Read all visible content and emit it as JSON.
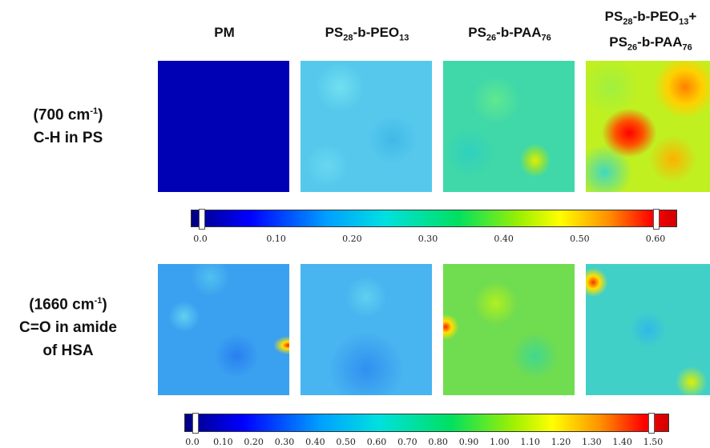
{
  "columns": [
    {
      "lines": [
        [
          "PM"
        ]
      ]
    },
    {
      "lines": [
        [
          "PS",
          "28",
          "-b-PEO",
          "13"
        ]
      ]
    },
    {
      "lines": [
        [
          "PS",
          "26",
          "-b-PAA",
          "76"
        ]
      ]
    },
    {
      "lines": [
        [
          "PS",
          "28",
          "-b-PEO",
          "13",
          "+"
        ],
        [
          "PS",
          "26",
          "-b-PAA",
          "76"
        ]
      ]
    }
  ],
  "rows": [
    {
      "lines": [
        [
          "(700 cm",
          "-1",
          ")"
        ],
        [
          "C-H in PS"
        ]
      ]
    },
    {
      "lines": [
        [
          "(1660 cm",
          "-1",
          ")"
        ],
        [
          "C=O in amide"
        ],
        [
          "of HSA"
        ]
      ]
    }
  ],
  "colorbars": [
    {
      "ticks": [
        "0.0",
        "0.10",
        "0.20",
        "0.30",
        "0.40",
        "0.50",
        "0.60"
      ]
    },
    {
      "ticks": [
        "0.0",
        "0.10",
        "0.20",
        "0.30",
        "0.40",
        "0.50",
        "0.60",
        "0.70",
        "0.80",
        "0.90",
        "1.00",
        "1.10",
        "1.20",
        "1.30",
        "1.40",
        "1.50"
      ]
    }
  ]
}
